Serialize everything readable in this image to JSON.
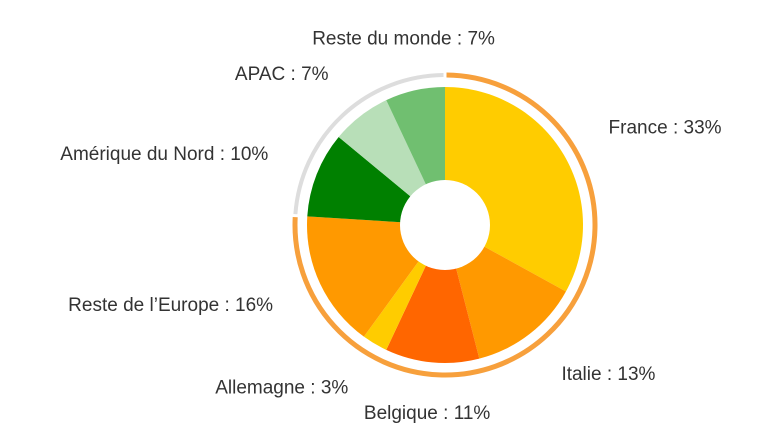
{
  "chart_data": {
    "type": "pie",
    "categories": [
      "France",
      "Italie",
      "Belgique",
      "Allemagne",
      "Reste de l'Europe",
      "Amérique du Nord",
      "APAC",
      "Reste du monde"
    ],
    "values": [
      33,
      13,
      11,
      3,
      16,
      10,
      7,
      7
    ],
    "value_labels": [
      "France : 33%",
      "Italie : 13%",
      "Belgique : 11%",
      "Allemagne : 3%",
      "Reste de l’Europe : 16%",
      "Amérique du Nord : 10%",
      "APAC : 7%",
      "Reste du monde : 7%"
    ],
    "colors": [
      "#ffcc00",
      "#ff9900",
      "#ff6600",
      "#ffcc00",
      "#ff9900",
      "#008000",
      "#b8dfb8",
      "#70bf70"
    ]
  }
}
